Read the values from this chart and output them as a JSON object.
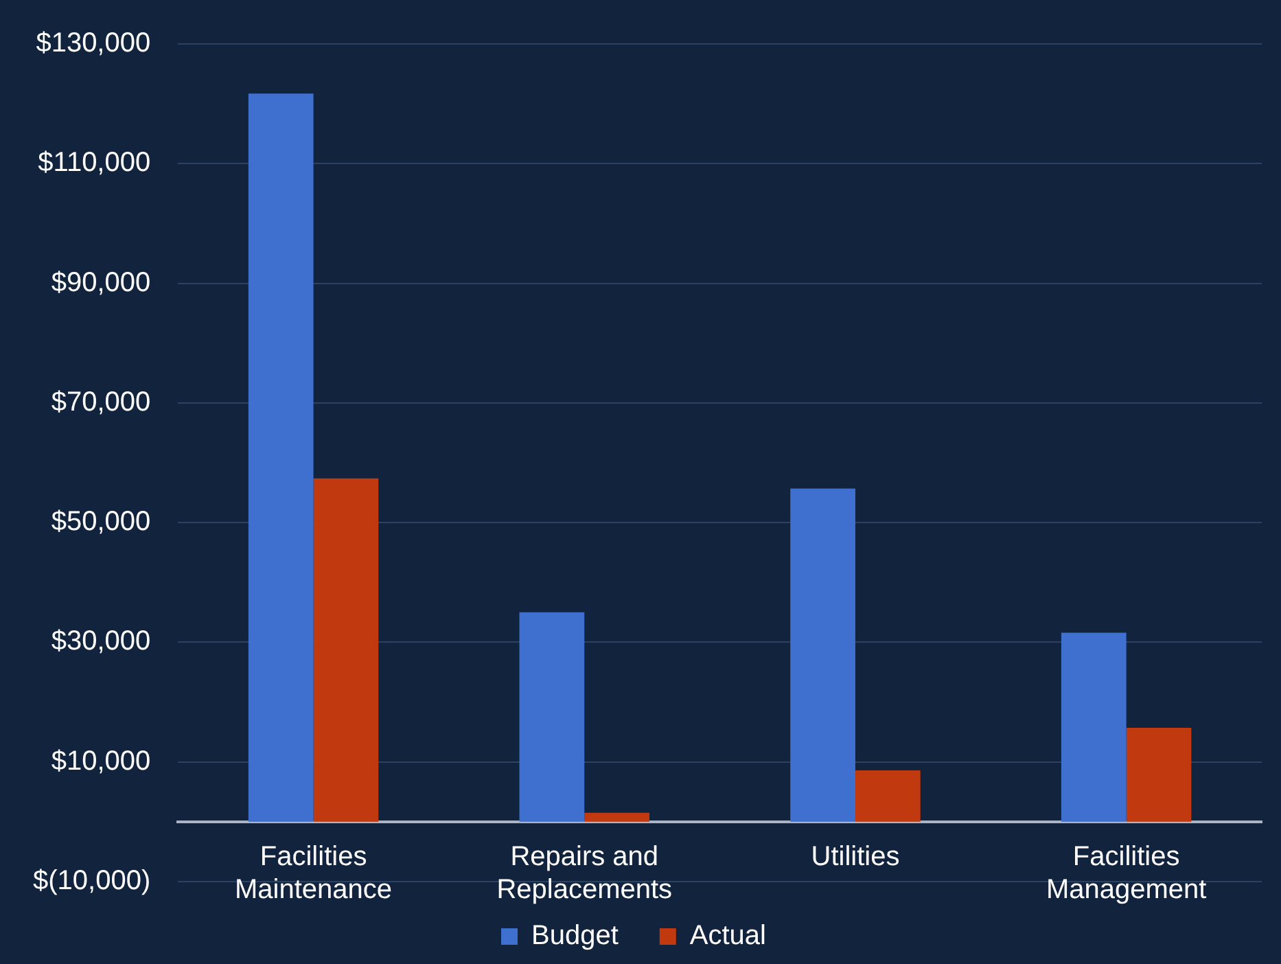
{
  "chart_data": {
    "type": "bar",
    "categories": [
      "Facilities Maintenance",
      "Repairs and Replacements",
      "Utilities",
      "Facilities Management"
    ],
    "series": [
      {
        "name": "Budget",
        "color": "#3f6fcf",
        "values": [
          121700,
          35000,
          55700,
          31600
        ]
      },
      {
        "name": "Actual",
        "color": "#c0390f",
        "values": [
          57400,
          1500,
          8600,
          15700
        ]
      }
    ],
    "ylim": [
      -10000,
      130000
    ],
    "yticks": [
      {
        "value": -10000,
        "label": "$(10,000)"
      },
      {
        "value": 10000,
        "label": "$10,000"
      },
      {
        "value": 30000,
        "label": "$30,000"
      },
      {
        "value": 50000,
        "label": "$50,000"
      },
      {
        "value": 70000,
        "label": "$70,000"
      },
      {
        "value": 90000,
        "label": "$90,000"
      },
      {
        "value": 110000,
        "label": "$110,000"
      },
      {
        "value": 130000,
        "label": "$130,000"
      }
    ],
    "grid": "y",
    "legend": "bottom"
  }
}
